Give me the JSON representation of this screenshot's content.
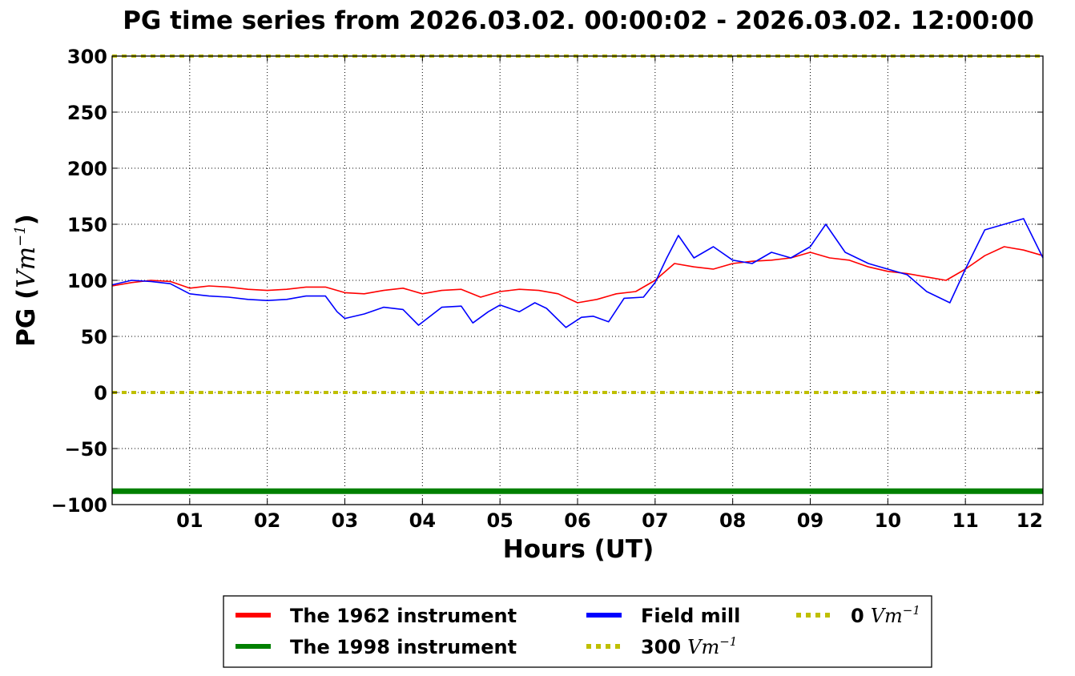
{
  "chart_data": {
    "type": "line",
    "title": "PG time series from 2026.03.02. 00:00:02 - 2026.03.02. 12:00:00",
    "xlabel": "Hours (UT)",
    "ylabel_text": "PG (",
    "ylabel_unit": "Vm",
    "ylabel_exp": "−1",
    "ylabel_close": ")",
    "xlim": [
      0,
      12
    ],
    "ylim": [
      -100,
      300
    ],
    "x_ticks": [
      1,
      2,
      3,
      4,
      5,
      6,
      7,
      8,
      9,
      10,
      11,
      12
    ],
    "x_tick_labels": [
      "01",
      "02",
      "03",
      "04",
      "05",
      "06",
      "07",
      "08",
      "09",
      "10",
      "11",
      "12"
    ],
    "y_ticks": [
      -100,
      -50,
      0,
      50,
      100,
      150,
      200,
      250,
      300
    ],
    "y_tick_labels": [
      "−100",
      "−50",
      "0",
      "50",
      "100",
      "150",
      "200",
      "250",
      "300"
    ],
    "grid": true,
    "legend_position": "bottom-center",
    "series": [
      {
        "name": "The 1962 instrument",
        "color": "#ff0000",
        "x": [
          0,
          0.25,
          0.5,
          0.75,
          1.0,
          1.25,
          1.5,
          1.75,
          2.0,
          2.25,
          2.5,
          2.75,
          3.0,
          3.25,
          3.5,
          3.75,
          4.0,
          4.25,
          4.5,
          4.75,
          5.0,
          5.25,
          5.5,
          5.75,
          6.0,
          6.25,
          6.5,
          6.75,
          7.0,
          7.25,
          7.5,
          7.75,
          8.0,
          8.25,
          8.5,
          8.75,
          9.0,
          9.25,
          9.5,
          9.75,
          10.0,
          10.25,
          10.5,
          10.75,
          11.0,
          11.25,
          11.5,
          11.75,
          12.0
        ],
        "y": [
          95,
          98,
          100,
          99,
          93,
          95,
          94,
          92,
          91,
          92,
          94,
          94,
          89,
          88,
          91,
          93,
          88,
          91,
          92,
          85,
          90,
          92,
          91,
          88,
          80,
          83,
          88,
          90,
          100,
          115,
          112,
          110,
          115,
          117,
          118,
          120,
          125,
          120,
          118,
          112,
          108,
          106,
          103,
          100,
          110,
          122,
          130,
          127,
          122
        ]
      },
      {
        "name": "The 1998 instrument",
        "color": "#008000",
        "x": [
          0,
          12
        ],
        "y": [
          -88,
          -88
        ]
      },
      {
        "name": "Field mill",
        "color": "#0000ff",
        "x": [
          0,
          0.25,
          0.5,
          0.75,
          1.0,
          1.25,
          1.5,
          1.75,
          2.0,
          2.25,
          2.5,
          2.75,
          2.9,
          3.0,
          3.25,
          3.5,
          3.75,
          3.95,
          4.25,
          4.5,
          4.65,
          4.85,
          5.0,
          5.25,
          5.45,
          5.6,
          5.85,
          6.05,
          6.2,
          6.4,
          6.6,
          6.85,
          7.0,
          7.15,
          7.3,
          7.5,
          7.75,
          8.0,
          8.25,
          8.5,
          8.75,
          9.0,
          9.2,
          9.45,
          9.75,
          10.0,
          10.25,
          10.5,
          10.65,
          10.8,
          11.0,
          11.25,
          11.5,
          11.75,
          12.0
        ],
        "y": [
          96,
          100,
          99,
          97,
          88,
          86,
          85,
          83,
          82,
          83,
          86,
          86,
          72,
          66,
          70,
          76,
          74,
          60,
          76,
          77,
          62,
          72,
          78,
          72,
          80,
          75,
          58,
          67,
          68,
          63,
          84,
          85,
          98,
          120,
          140,
          120,
          130,
          118,
          115,
          125,
          120,
          130,
          150,
          125,
          115,
          110,
          105,
          90,
          85,
          80,
          110,
          145,
          150,
          155,
          120
        ]
      },
      {
        "name": "300 Vm^-1",
        "color": "#bfbf00",
        "dashed": true,
        "x": [
          0,
          12
        ],
        "y": [
          300,
          300
        ]
      },
      {
        "name": "0 Vm^-1",
        "color": "#bfbf00",
        "dashed": true,
        "x": [
          0,
          12
        ],
        "y": [
          0,
          0
        ]
      }
    ],
    "legend": [
      {
        "label": "The 1962 instrument",
        "value": "",
        "color": "#ff0000",
        "dashed": false
      },
      {
        "label": "The 1998 instrument",
        "value": "",
        "color": "#008000",
        "dashed": false
      },
      {
        "label": "Field mill",
        "value": "",
        "color": "#0000ff",
        "dashed": false
      },
      {
        "label": "300",
        "value": "300",
        "unit": "Vm",
        "exp": "−1",
        "color": "#bfbf00",
        "dashed": true
      },
      {
        "label": "0",
        "value": "0",
        "unit": "Vm",
        "exp": "−1",
        "color": "#bfbf00",
        "dashed": true
      }
    ]
  }
}
